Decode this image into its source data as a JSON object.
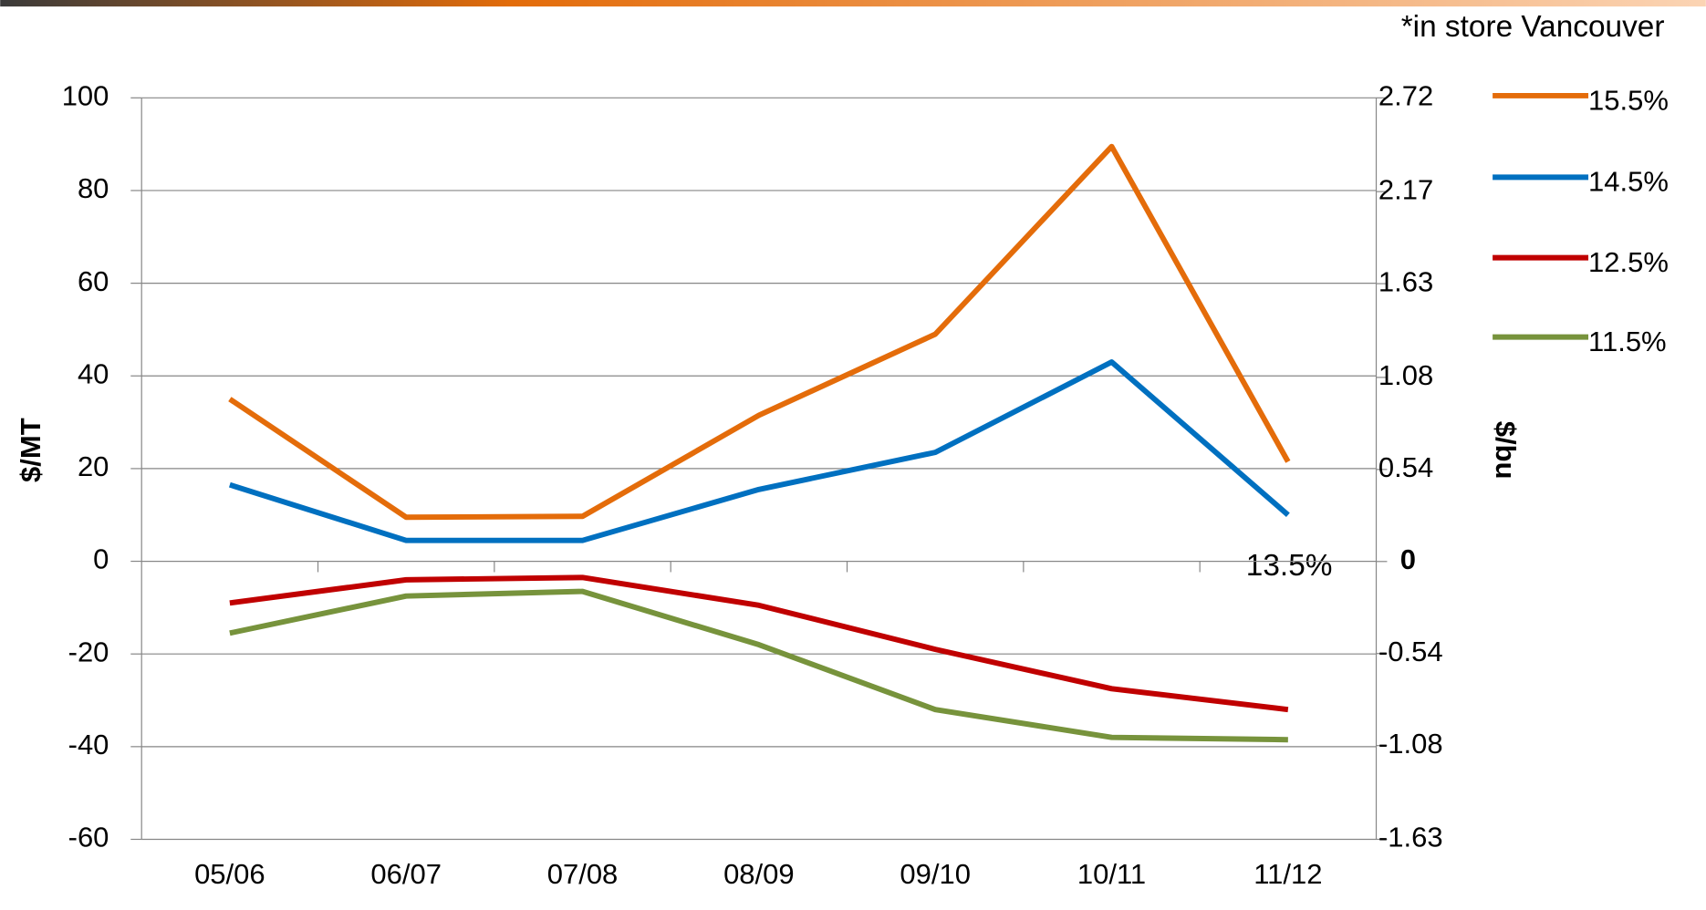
{
  "chart_data": {
    "type": "line",
    "note": "*in store Vancouver",
    "ylabel": "$/MT",
    "y2label": "$/bu",
    "annotation": "13.5%",
    "categories": [
      "05/06",
      "06/07",
      "07/08",
      "08/09",
      "09/10",
      "10/11",
      "11/12"
    ],
    "series": [
      {
        "name": "15.5%",
        "color": "#e46c0a",
        "values": [
          35,
          9.5,
          9.7,
          31.5,
          49,
          89.5,
          21.5
        ]
      },
      {
        "name": "14.5%",
        "color": "#0070c0",
        "values": [
          16.5,
          4.5,
          4.5,
          15.5,
          23.5,
          43,
          10
        ]
      },
      {
        "name": "12.5%",
        "color": "#c00000",
        "values": [
          -9,
          -4,
          -3.5,
          -9.5,
          -19,
          -27.5,
          -32
        ]
      },
      {
        "name": "11.5%",
        "color": "#77933c",
        "values": [
          -15.5,
          -7.5,
          -6.5,
          -18,
          -32,
          -38,
          -38.5
        ]
      }
    ],
    "ylim": [
      -60,
      100
    ],
    "yticks": [
      -60,
      -40,
      -20,
      0,
      20,
      40,
      60,
      80,
      100
    ],
    "y2lim": [
      -1.63,
      2.72
    ],
    "y2ticks": [
      -1.63,
      -1.08,
      -0.54,
      0,
      0.54,
      1.08,
      1.63,
      2.17,
      2.72
    ],
    "grid": true,
    "legend": "right"
  }
}
